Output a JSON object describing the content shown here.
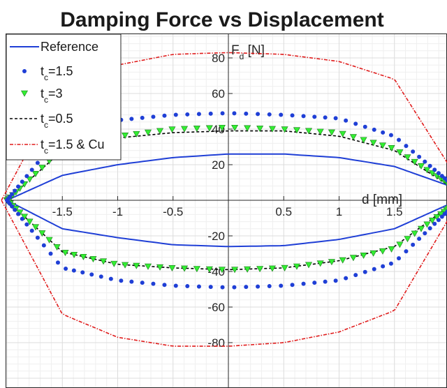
{
  "chart_data": {
    "type": "line",
    "title": "Damping Force vs Displacement",
    "xlabel": "d [mm]",
    "ylabel": {
      "main": "F",
      "sub": "d",
      "unit": " [N]"
    },
    "xlim": [
      -2.0,
      2.0
    ],
    "ylim": [
      -92,
      95
    ],
    "grid": "on (major and minor)",
    "legend_position": "top-left",
    "xticks": [
      {
        "value": -1.5,
        "label": "-1.5"
      },
      {
        "value": -1.0,
        "label": "-1"
      },
      {
        "value": -0.5,
        "label": "-0.5"
      },
      {
        "value": 0.5,
        "label": "0.5"
      },
      {
        "value": 1.0,
        "label": "1"
      },
      {
        "value": 1.5,
        "label": "1.5"
      }
    ],
    "yticks": [
      {
        "value": 80,
        "label": "80"
      },
      {
        "value": 60,
        "label": "60"
      },
      {
        "value": 40,
        "label": "40"
      },
      {
        "value": 20,
        "label": "20"
      },
      {
        "value": -20,
        "label": "-20"
      },
      {
        "value": -40,
        "label": "-40"
      },
      {
        "value": -60,
        "label": "-60"
      },
      {
        "value": -80,
        "label": "-80"
      }
    ],
    "series": [
      {
        "name": "Reference",
        "legend": {
          "main": "Reference",
          "sub": "",
          "rest": ""
        },
        "style": "solid",
        "color": "#1f3fd6",
        "amp": 2.0,
        "upper": [
          [
            -2.0,
            0
          ],
          [
            -1.5,
            14
          ],
          [
            -1.0,
            20
          ],
          [
            -0.5,
            24
          ],
          [
            0.0,
            26
          ],
          [
            0.5,
            26
          ],
          [
            1.0,
            24
          ],
          [
            1.5,
            19
          ],
          [
            2.0,
            8
          ]
        ],
        "lower": [
          [
            -2.0,
            0
          ],
          [
            -1.5,
            -16
          ],
          [
            -1.0,
            -21
          ],
          [
            -0.5,
            -25
          ],
          [
            0.0,
            -26
          ],
          [
            0.5,
            -25.5
          ],
          [
            1.0,
            -22
          ],
          [
            1.5,
            -16
          ],
          [
            2.0,
            -2
          ]
        ]
      },
      {
        "name": "t_c=1.5",
        "legend": {
          "main": "t",
          "sub": "c",
          "rest": "=1.5"
        },
        "style": "dots",
        "color": "#1f3fd6",
        "amp": 2.0,
        "n": 60,
        "upper": [
          [
            -2.0,
            0
          ],
          [
            -1.5,
            38
          ],
          [
            -1.0,
            45
          ],
          [
            -0.5,
            48
          ],
          [
            0.0,
            49
          ],
          [
            0.5,
            48
          ],
          [
            1.0,
            46
          ],
          [
            1.5,
            36
          ],
          [
            2.0,
            10
          ]
        ],
        "lower": [
          [
            -2.0,
            0
          ],
          [
            -1.5,
            -38
          ],
          [
            -1.0,
            -45
          ],
          [
            -0.5,
            -48
          ],
          [
            0.0,
            -49
          ],
          [
            0.5,
            -48
          ],
          [
            1.0,
            -45
          ],
          [
            1.5,
            -35
          ],
          [
            2.0,
            -5
          ]
        ]
      },
      {
        "name": "t_c=3",
        "legend": {
          "main": "t",
          "sub": "c",
          "rest": "=3"
        },
        "style": "triangles",
        "color": "#33ee33",
        "amp": 2.0,
        "n": 56,
        "upper": [
          [
            -2.0,
            0
          ],
          [
            -1.5,
            29
          ],
          [
            -1.0,
            36
          ],
          [
            -0.5,
            40
          ],
          [
            0.0,
            41
          ],
          [
            0.5,
            40
          ],
          [
            1.0,
            38
          ],
          [
            1.5,
            29
          ],
          [
            2.0,
            9
          ]
        ],
        "lower": [
          [
            -2.0,
            0
          ],
          [
            -1.5,
            -29
          ],
          [
            -1.0,
            -36
          ],
          [
            -0.5,
            -38
          ],
          [
            0.0,
            -39
          ],
          [
            0.5,
            -38
          ],
          [
            1.0,
            -34
          ],
          [
            1.5,
            -27
          ],
          [
            2.0,
            -4
          ]
        ]
      },
      {
        "name": "t_c=0.5",
        "legend": {
          "main": "t",
          "sub": "c",
          "rest": "=0.5"
        },
        "style": "dashed",
        "color": "#000000",
        "amp": 2.0,
        "upper": [
          [
            -2.0,
            0
          ],
          [
            -1.5,
            28
          ],
          [
            -1.0,
            35
          ],
          [
            -0.5,
            38
          ],
          [
            0.0,
            39
          ],
          [
            0.5,
            39
          ],
          [
            1.0,
            36
          ],
          [
            1.5,
            28
          ],
          [
            2.0,
            8
          ]
        ],
        "lower": [
          [
            -2.0,
            0
          ],
          [
            -1.5,
            -29
          ],
          [
            -1.0,
            -36
          ],
          [
            -0.5,
            -38
          ],
          [
            0.0,
            -39
          ],
          [
            0.5,
            -38
          ],
          [
            1.0,
            -34
          ],
          [
            1.5,
            -26
          ],
          [
            2.0,
            -3
          ]
        ]
      },
      {
        "name": "t_c=1.5 & Cu",
        "legend": {
          "main": "t",
          "sub": "c",
          "rest": "=1.5 & Cu"
        },
        "style": "dashdot",
        "color": "#e01a1a",
        "amp": 2.05,
        "upper": [
          [
            -2.05,
            0
          ],
          [
            -1.5,
            64
          ],
          [
            -1.0,
            76
          ],
          [
            -0.5,
            82
          ],
          [
            0.0,
            83
          ],
          [
            0.5,
            82
          ],
          [
            1.0,
            78
          ],
          [
            1.5,
            68
          ],
          [
            2.05,
            14
          ]
        ],
        "lower": [
          [
            -2.05,
            0
          ],
          [
            -1.5,
            -64
          ],
          [
            -1.0,
            -77
          ],
          [
            -0.5,
            -82
          ],
          [
            0.0,
            -82
          ],
          [
            0.5,
            -80
          ],
          [
            1.0,
            -74
          ],
          [
            1.5,
            -62
          ],
          [
            2.05,
            -4
          ]
        ]
      }
    ]
  }
}
